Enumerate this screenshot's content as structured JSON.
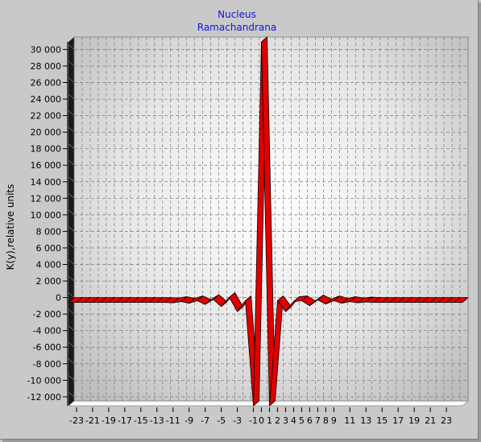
{
  "chart_data": {
    "type": "line",
    "title": "Nucleus",
    "subtitle": "Ramachandrana",
    "xlabel": "",
    "ylabel": "K(y),relative units",
    "xlim": [
      -24,
      25
    ],
    "ylim": [
      -12500,
      31500
    ],
    "y_ticks": [
      -12000,
      -10000,
      -8000,
      -6000,
      -4000,
      -2000,
      0,
      2000,
      4000,
      6000,
      8000,
      10000,
      12000,
      14000,
      16000,
      18000,
      20000,
      22000,
      24000,
      26000,
      28000,
      30000
    ],
    "y_tick_labels": [
      "-12 000",
      "-10 000",
      "-8 000",
      "-6 000",
      "-4 000",
      "-2 000",
      "0",
      "2 000",
      "4 000",
      "6 000",
      "8 000",
      "10 000",
      "12 000",
      "14 000",
      "16 000",
      "18 000",
      "20 000",
      "22 000",
      "24 000",
      "26 000",
      "28 000",
      "30 000"
    ],
    "x_tick_labels": [
      {
        "x": -23,
        "label": "-23"
      },
      {
        "x": -21,
        "label": "-21"
      },
      {
        "x": -19,
        "label": "-19"
      },
      {
        "x": -17,
        "label": "-17"
      },
      {
        "x": -15,
        "label": "-15"
      },
      {
        "x": -13,
        "label": "-13"
      },
      {
        "x": -11,
        "label": "-11"
      },
      {
        "x": -9,
        "label": "-9"
      },
      {
        "x": -7,
        "label": "-7"
      },
      {
        "x": -5,
        "label": "-5"
      },
      {
        "x": -3,
        "label": "-3"
      },
      {
        "x": -1,
        "label": "-1"
      },
      {
        "x": 0,
        "label": "0"
      },
      {
        "x": 1,
        "label": "1"
      },
      {
        "x": 2,
        "label": "2"
      },
      {
        "x": 3,
        "label": "3"
      },
      {
        "x": 4,
        "label": "4"
      },
      {
        "x": 5,
        "label": "5"
      },
      {
        "x": 6,
        "label": "6"
      },
      {
        "x": 7,
        "label": "7"
      },
      {
        "x": 8,
        "label": "8"
      },
      {
        "x": 9,
        "label": "9"
      },
      {
        "x": 11,
        "label": "11"
      },
      {
        "x": 13,
        "label": "13"
      },
      {
        "x": 15,
        "label": "15"
      },
      {
        "x": 17,
        "label": "17"
      },
      {
        "x": 19,
        "label": "19"
      },
      {
        "x": 21,
        "label": "21"
      },
      {
        "x": 23,
        "label": "23"
      }
    ],
    "grid": true,
    "series": [
      {
        "color": "#e00000",
        "points": [
          [
            -24,
            0
          ],
          [
            -23,
            0
          ],
          [
            -22,
            0
          ],
          [
            -21,
            0
          ],
          [
            -20,
            0
          ],
          [
            -19,
            0
          ],
          [
            -18,
            0
          ],
          [
            -17,
            0
          ],
          [
            -16,
            0
          ],
          [
            -15,
            0
          ],
          [
            -14,
            0
          ],
          [
            -13,
            0
          ],
          [
            -12,
            0
          ],
          [
            -11,
            -50
          ],
          [
            -10,
            100
          ],
          [
            -9,
            -100
          ],
          [
            -8,
            200
          ],
          [
            -7,
            -250
          ],
          [
            -6,
            350
          ],
          [
            -5,
            -500
          ],
          [
            -4,
            600
          ],
          [
            -3,
            -1100
          ],
          [
            -2,
            200
          ],
          [
            -1,
            -12500
          ],
          [
            0,
            31500
          ],
          [
            1,
            -12500
          ],
          [
            2,
            200
          ],
          [
            3,
            -1100
          ],
          [
            4,
            100
          ],
          [
            5,
            200
          ],
          [
            6,
            -400
          ],
          [
            7,
            300
          ],
          [
            8,
            -200
          ],
          [
            9,
            200
          ],
          [
            10,
            -100
          ],
          [
            11,
            100
          ],
          [
            12,
            -50
          ],
          [
            13,
            50
          ],
          [
            14,
            0
          ],
          [
            15,
            0
          ],
          [
            16,
            0
          ],
          [
            17,
            0
          ],
          [
            18,
            0
          ],
          [
            19,
            0
          ],
          [
            20,
            0
          ],
          [
            21,
            0
          ],
          [
            22,
            0
          ],
          [
            23,
            0
          ],
          [
            24,
            0
          ],
          [
            25,
            0
          ]
        ]
      }
    ]
  }
}
